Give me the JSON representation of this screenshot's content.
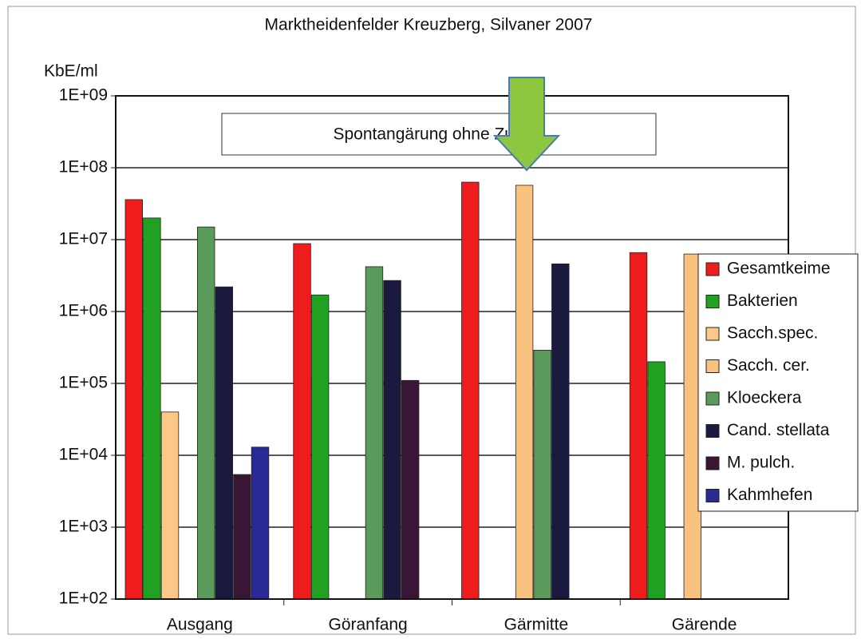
{
  "chart_data": {
    "type": "bar",
    "title": "Marktheidenfelder Kreuzberg, Silvaner 2007",
    "y_label": "KbE/ml",
    "annotation": "Spontangärung ohne Zusatz",
    "log_scale": true,
    "grid": true,
    "legend": "right",
    "categories": [
      "Ausgang",
      "Göranfang",
      "Gärmitte",
      "Gärende"
    ],
    "ylim": [
      100,
      1000000000
    ],
    "yticks": [
      {
        "value": 100,
        "label": "1E+02"
      },
      {
        "value": 1000,
        "label": "1E+03"
      },
      {
        "value": 10000,
        "label": "1E+04"
      },
      {
        "value": 100000,
        "label": "1E+05"
      },
      {
        "value": 1000000,
        "label": "1E+06"
      },
      {
        "value": 10000000,
        "label": "1E+07"
      },
      {
        "value": 100000000,
        "label": "1E+08"
      },
      {
        "value": 1000000000,
        "label": "1E+09"
      }
    ],
    "series": [
      {
        "name": "Gesamtkeime",
        "color": "#ee1c1c",
        "values": [
          36000000,
          8800000,
          63000000,
          6600000
        ]
      },
      {
        "name": "Bakterien",
        "color": "#21a121",
        "values": [
          20000000,
          1700000,
          null,
          200000
        ]
      },
      {
        "name": "Sacch.spec.",
        "color": "#fcc888",
        "values": [
          40000,
          null,
          null,
          null
        ]
      },
      {
        "name": "Sacch. cer.",
        "color": "#f9c27e",
        "values": [
          null,
          null,
          57000000,
          6300000
        ]
      },
      {
        "name": "Kloeckera",
        "color": "#5a9a5a",
        "values": [
          15000000,
          4200000,
          290000,
          null
        ]
      },
      {
        "name": "Cand. stellata",
        "color": "#1a1a3e",
        "values": [
          2200000,
          2700000,
          4600000,
          null
        ]
      },
      {
        "name": "M. pulch.",
        "color": "#3a1636",
        "values": [
          5400,
          110000,
          null,
          null
        ]
      },
      {
        "name": "Kahmhefen",
        "color": "#2a2a96",
        "values": [
          13000,
          null,
          null,
          null
        ]
      }
    ]
  }
}
